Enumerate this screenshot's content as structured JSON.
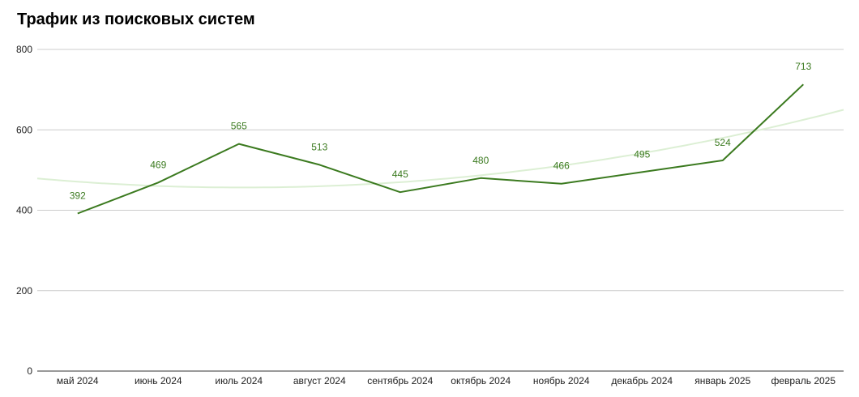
{
  "chart_data": {
    "type": "line",
    "title": "Трафик из поисковых систем",
    "xlabel": "",
    "ylabel": "",
    "categories": [
      "май 2024",
      "июнь 2024",
      "июль 2024",
      "август 2024",
      "сентябрь 2024",
      "октябрь 2024",
      "ноябрь 2024",
      "декабрь 2024",
      "январь 2025",
      "февраль 2025"
    ],
    "series": [
      {
        "values": [
          392,
          469,
          565,
          513,
          445,
          480,
          466,
          495,
          524,
          713
        ]
      }
    ],
    "trendline": {
      "type": "polynomial",
      "degree": 2
    },
    "ylim": [
      0,
      800
    ],
    "yticks": [
      0,
      200,
      400,
      600,
      800
    ],
    "grid": true,
    "legend": "none",
    "data_labels": true,
    "colors": {
      "line": "#3b7a1f",
      "labels": "#3b7a1f",
      "trend": "#dcefd4",
      "grid": "#cccccc",
      "axis": "#333333"
    }
  }
}
